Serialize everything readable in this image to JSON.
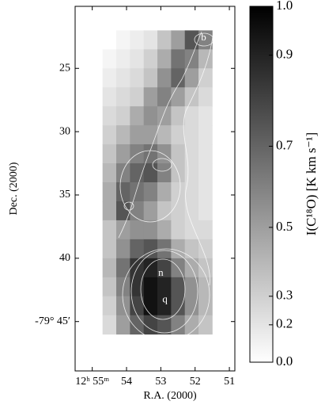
{
  "chart_data": {
    "type": "heatmap",
    "xlabel": "R.A. (2000)",
    "ylabel": "Dec. (2000)",
    "xlim": [
      55.5,
      50.84
    ],
    "xticks": [
      {
        "value": 55,
        "label": "12ʰ 55ᵐ"
      },
      54,
      53,
      52,
      51
    ],
    "ylim": [
      20.1,
      48.9
    ],
    "yticks": [
      25,
      30,
      35,
      40,
      {
        "value": 45,
        "label": "-79° 45′"
      }
    ],
    "x_edges": [
      54.7,
      54.3,
      53.9,
      53.5,
      53.1,
      52.7,
      52.3,
      51.9,
      51.5
    ],
    "y_edges": [
      22,
      23.5,
      25,
      26.5,
      28,
      29.5,
      31,
      32.5,
      34,
      35.5,
      37,
      38.5,
      40,
      41.5,
      43,
      44.5,
      46
    ],
    "values": [
      [
        null,
        0.1,
        0.15,
        0.2,
        0.35,
        0.5,
        0.75,
        0.6
      ],
      [
        0.1,
        0.15,
        0.2,
        0.3,
        0.45,
        0.65,
        0.6,
        0.4
      ],
      [
        0.15,
        0.2,
        0.25,
        0.35,
        0.55,
        0.7,
        0.5,
        0.3
      ],
      [
        0.2,
        0.25,
        0.3,
        0.5,
        0.6,
        0.5,
        0.35,
        0.25
      ],
      [
        0.25,
        0.3,
        0.45,
        0.55,
        0.5,
        0.35,
        0.25,
        0.2
      ],
      [
        0.3,
        0.4,
        0.5,
        0.5,
        0.4,
        0.3,
        0.25,
        0.2
      ],
      [
        0.35,
        0.5,
        0.6,
        0.65,
        0.55,
        0.35,
        0.25,
        0.2
      ],
      [
        0.4,
        0.6,
        0.7,
        0.75,
        0.6,
        0.35,
        0.25,
        0.2
      ],
      [
        0.45,
        0.7,
        0.65,
        0.6,
        0.45,
        0.3,
        0.25,
        0.2
      ],
      [
        0.45,
        0.75,
        0.6,
        0.5,
        0.35,
        0.3,
        0.25,
        0.2
      ],
      [
        0.35,
        0.5,
        0.55,
        0.55,
        0.45,
        0.3,
        0.25,
        0.25
      ],
      [
        0.35,
        0.55,
        0.7,
        0.75,
        0.65,
        0.45,
        0.35,
        0.3
      ],
      [
        0.4,
        0.65,
        0.85,
        0.9,
        0.8,
        0.6,
        0.45,
        0.35
      ],
      [
        0.35,
        0.6,
        0.85,
        0.95,
        0.9,
        0.75,
        0.55,
        0.4
      ],
      [
        0.3,
        0.55,
        0.8,
        0.95,
        0.9,
        0.75,
        0.55,
        0.4
      ],
      [
        0.25,
        0.5,
        0.7,
        0.8,
        0.75,
        0.6,
        0.45,
        0.35
      ]
    ],
    "annotations": [
      {
        "text": "b",
        "x": 51.75,
        "y": 22.6
      },
      {
        "text": "n",
        "x": 53.0,
        "y": 41.2
      },
      {
        "text": "q",
        "x": 52.88,
        "y": 43.3
      }
    ],
    "colorbar": {
      "label": "I(C¹⁸O) [K km s⁻¹]",
      "lim": [
        0,
        1
      ],
      "power": 1.4,
      "ticks": [
        {
          "value": 1,
          "label": "1.0"
        },
        0.9,
        0.7,
        0.5,
        0.3,
        0.2,
        {
          "value": 0,
          "label": "0.0"
        }
      ]
    }
  }
}
